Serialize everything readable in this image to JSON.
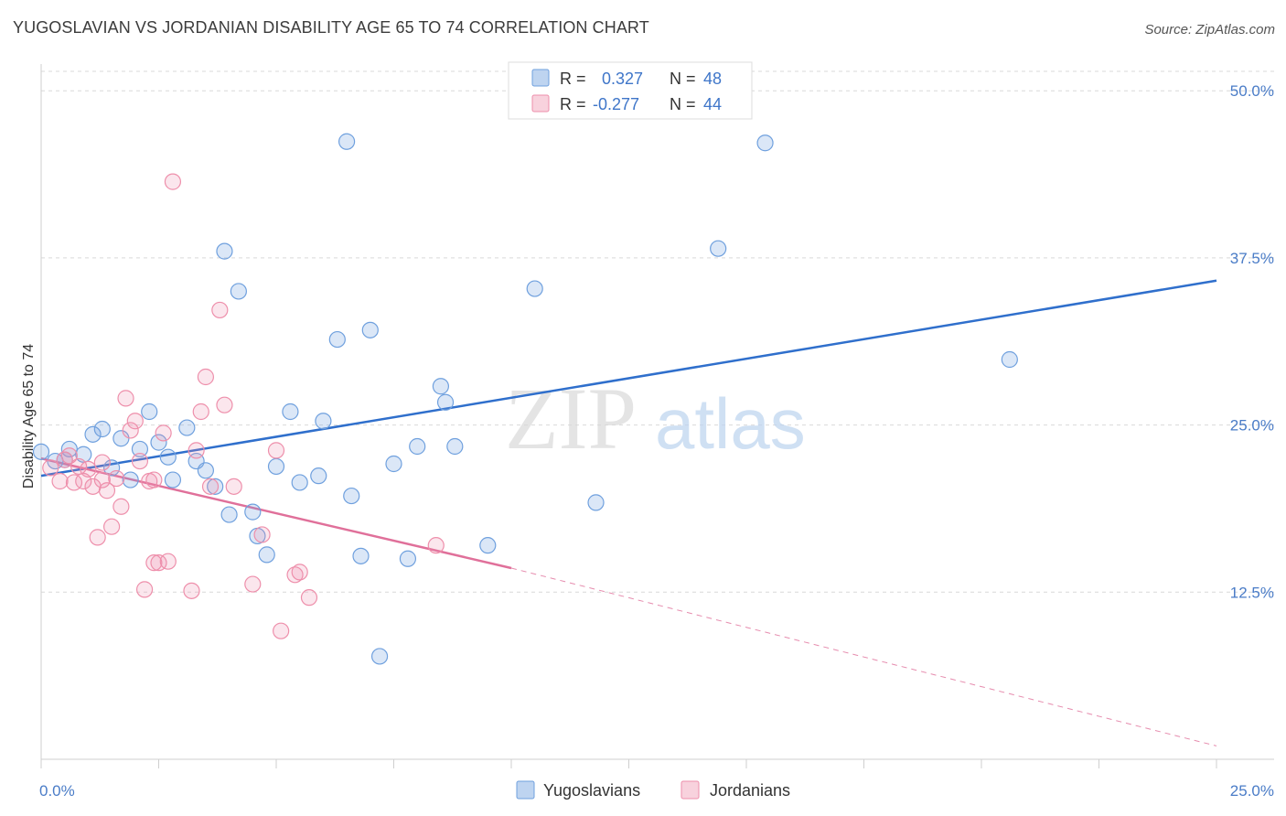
{
  "title": "YUGOSLAVIAN VS JORDANIAN DISABILITY AGE 65 TO 74 CORRELATION CHART",
  "source": "Source: ZipAtlas.com",
  "watermark": {
    "zip": "ZIP",
    "atlas": "atlas"
  },
  "colors": {
    "blue": "#6fa0de",
    "blue_fill": "rgba(111,160,222,0.25)",
    "blue_line": "#2f6fcc",
    "pink": "#ee8fab",
    "pink_fill": "rgba(238,143,171,0.22)",
    "pink_line": "#e0709a",
    "axis_label": "#4a7cc7",
    "grid": "#d9d9d9"
  },
  "legend": {
    "rows": [
      {
        "r_label": "R =",
        "r_value": "0.327",
        "n_label": "N =",
        "n_value": "48",
        "color": "blue"
      },
      {
        "r_label": "R =",
        "r_value": "-0.277",
        "n_label": "N =",
        "n_value": "44",
        "color": "pink"
      }
    ]
  },
  "bottom_legend": {
    "items": [
      {
        "label": "Yugoslavians",
        "color": "blue"
      },
      {
        "label": "Jordanians",
        "color": "pink"
      }
    ]
  },
  "chart_data": {
    "type": "scatter",
    "ylabel": "Disability Age 65 to 74",
    "xlim": [
      0,
      25
    ],
    "ylim": [
      0,
      52
    ],
    "x_tick_labels": [
      {
        "value": 0,
        "label": "0.0%"
      },
      {
        "value": 25,
        "label": "25.0%"
      }
    ],
    "y_tick_labels": [
      {
        "value": 12.5,
        "label": "12.5%"
      },
      {
        "value": 25,
        "label": "25.0%"
      },
      {
        "value": 37.5,
        "label": "37.5%"
      },
      {
        "value": 50,
        "label": "50.0%"
      }
    ],
    "series": [
      {
        "name": "Yugoslavians",
        "color": "blue",
        "points": [
          [
            0.0,
            23.0
          ],
          [
            0.3,
            22.3
          ],
          [
            0.5,
            22.4
          ],
          [
            0.6,
            23.2
          ],
          [
            0.9,
            22.8
          ],
          [
            1.1,
            24.3
          ],
          [
            1.3,
            24.7
          ],
          [
            1.5,
            21.8
          ],
          [
            1.7,
            24.0
          ],
          [
            1.9,
            20.9
          ],
          [
            2.1,
            23.2
          ],
          [
            2.3,
            26.0
          ],
          [
            2.5,
            23.7
          ],
          [
            2.7,
            22.6
          ],
          [
            2.8,
            20.9
          ],
          [
            3.1,
            24.8
          ],
          [
            3.3,
            22.3
          ],
          [
            3.5,
            21.6
          ],
          [
            3.7,
            20.4
          ],
          [
            3.9,
            38.0
          ],
          [
            4.0,
            18.3
          ],
          [
            4.2,
            35.0
          ],
          [
            4.5,
            18.5
          ],
          [
            4.6,
            16.7
          ],
          [
            4.8,
            15.3
          ],
          [
            5.0,
            21.9
          ],
          [
            5.3,
            26.0
          ],
          [
            5.5,
            20.7
          ],
          [
            5.9,
            21.2
          ],
          [
            6.0,
            25.3
          ],
          [
            6.3,
            31.4
          ],
          [
            6.6,
            19.7
          ],
          [
            6.5,
            46.2
          ],
          [
            6.8,
            15.2
          ],
          [
            7.0,
            32.1
          ],
          [
            7.2,
            7.7
          ],
          [
            7.5,
            22.1
          ],
          [
            7.8,
            15.0
          ],
          [
            8.0,
            23.4
          ],
          [
            8.5,
            27.9
          ],
          [
            8.6,
            26.7
          ],
          [
            8.8,
            23.4
          ],
          [
            9.5,
            16.0
          ],
          [
            10.5,
            35.2
          ],
          [
            11.8,
            19.2
          ],
          [
            14.4,
            38.2
          ],
          [
            15.4,
            46.1
          ],
          [
            20.6,
            29.9
          ]
        ],
        "trend": {
          "x": [
            0,
            25
          ],
          "y": [
            21.2,
            35.8
          ]
        }
      },
      {
        "name": "Jordanians",
        "color": "pink",
        "points": [
          [
            0.2,
            21.8
          ],
          [
            0.4,
            20.8
          ],
          [
            0.6,
            22.7
          ],
          [
            0.7,
            20.7
          ],
          [
            0.8,
            21.9
          ],
          [
            0.9,
            20.8
          ],
          [
            1.0,
            21.7
          ],
          [
            1.1,
            20.4
          ],
          [
            1.2,
            16.6
          ],
          [
            1.3,
            20.9
          ],
          [
            1.4,
            20.1
          ],
          [
            1.5,
            17.4
          ],
          [
            1.6,
            21.0
          ],
          [
            1.7,
            18.9
          ],
          [
            1.8,
            27.0
          ],
          [
            1.9,
            24.6
          ],
          [
            2.0,
            25.3
          ],
          [
            2.1,
            22.3
          ],
          [
            2.2,
            12.7
          ],
          [
            2.3,
            20.8
          ],
          [
            2.4,
            14.7
          ],
          [
            2.5,
            14.7
          ],
          [
            2.6,
            24.4
          ],
          [
            2.7,
            14.8
          ],
          [
            2.8,
            43.2
          ],
          [
            3.2,
            12.6
          ],
          [
            3.3,
            23.1
          ],
          [
            3.4,
            26.0
          ],
          [
            3.5,
            28.6
          ],
          [
            3.6,
            20.4
          ],
          [
            3.8,
            33.6
          ],
          [
            3.9,
            26.5
          ],
          [
            4.1,
            20.4
          ],
          [
            4.5,
            13.1
          ],
          [
            4.7,
            16.8
          ],
          [
            5.0,
            23.1
          ],
          [
            5.1,
            9.6
          ],
          [
            5.4,
            13.8
          ],
          [
            5.5,
            14.0
          ],
          [
            5.7,
            12.1
          ],
          [
            8.4,
            16.0
          ],
          [
            0.5,
            22.4
          ],
          [
            1.3,
            22.2
          ],
          [
            2.4,
            20.9
          ]
        ],
        "trend": {
          "x": [
            0,
            10
          ],
          "y": [
            22.5,
            14.3
          ]
        },
        "trend_dashed": {
          "x": [
            10,
            25
          ],
          "y": [
            14.3,
            1.0
          ]
        }
      }
    ]
  }
}
